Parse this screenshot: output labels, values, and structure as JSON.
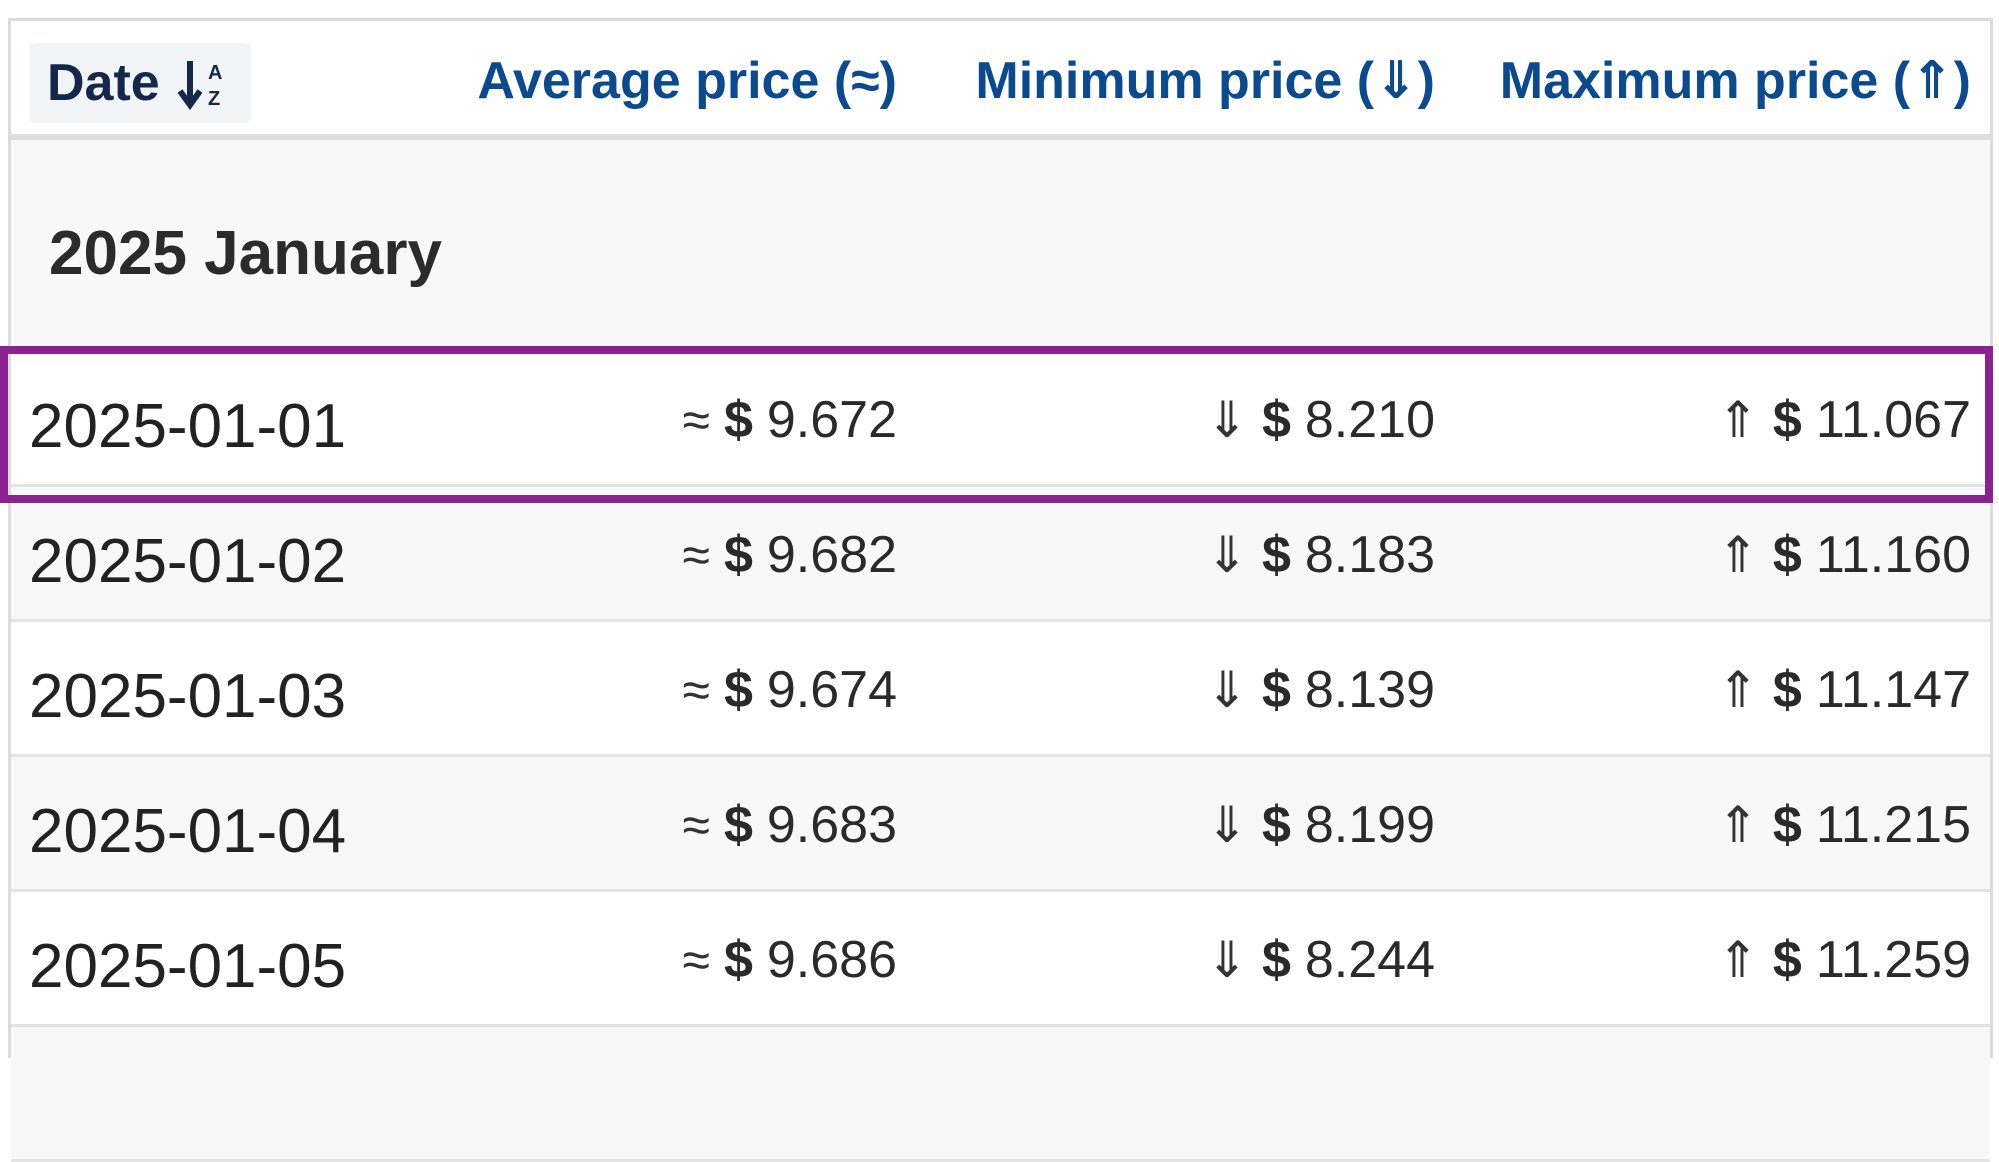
{
  "header": {
    "date_label": "Date",
    "sort_icon": "sort-alpha-down-icon",
    "avg_label": "Average price (≈)",
    "min_label": "Minimum price (⇓)",
    "max_label": "Maximum price (⇑)"
  },
  "group": {
    "label": "2025 January"
  },
  "symbols": {
    "approx": "≈",
    "down": "⇓",
    "up": "⇑",
    "dollar": "$"
  },
  "rows": [
    {
      "date": "2025-01-01",
      "avg": "9.672",
      "min": "8.210",
      "max": "11.067"
    },
    {
      "date": "2025-01-02",
      "avg": "9.682",
      "min": "8.183",
      "max": "11.160"
    },
    {
      "date": "2025-01-03",
      "avg": "9.674",
      "min": "8.139",
      "max": "11.147"
    },
    {
      "date": "2025-01-04",
      "avg": "9.683",
      "min": "8.199",
      "max": "11.215"
    },
    {
      "date": "2025-01-05",
      "avg": "9.686",
      "min": "8.244",
      "max": "11.259"
    }
  ],
  "colors": {
    "header_link": "#0b4a8f",
    "highlight_border": "#8b2291",
    "row_alt": "#f8f8f8"
  }
}
